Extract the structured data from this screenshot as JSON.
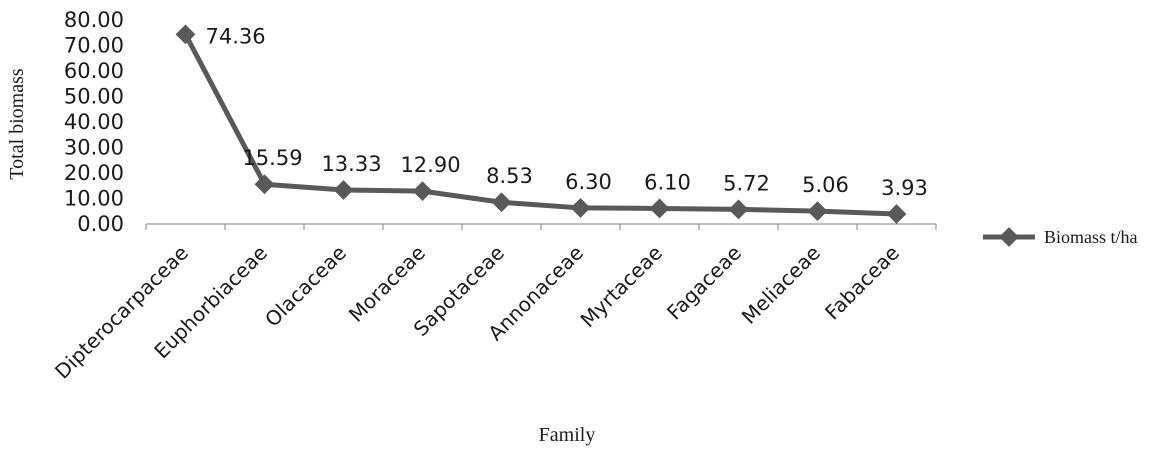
{
  "chart_data": {
    "type": "line",
    "title": "",
    "xlabel": "Family",
    "ylabel": "Total biomass",
    "categories": [
      "Dipterocarpaceae",
      "Euphorbiaceae",
      "Olacaceae",
      "Moraceae",
      "Sapotaceae",
      "Annonaceae",
      "Myrtaceae",
      "Fagaceae",
      "Meliaceae",
      "Fabaceae"
    ],
    "series": [
      {
        "name": "Biomass t/ha",
        "values": [
          74.36,
          15.59,
          13.33,
          12.9,
          8.53,
          6.3,
          6.1,
          5.72,
          5.06,
          3.93
        ],
        "labels": [
          "74.36",
          "15.59",
          "13.33",
          "12.90",
          "8.53",
          "6.30",
          "6.10",
          "5.72",
          "5.06",
          "3.93"
        ],
        "color": "#595959",
        "marker": "diamond"
      }
    ],
    "yticks": [
      "0.00",
      "10.00",
      "20.00",
      "30.00",
      "40.00",
      "50.00",
      "60.00",
      "70.00",
      "80.00"
    ],
    "ylim": [
      0,
      80
    ],
    "grid": false,
    "legend_position": "right"
  }
}
